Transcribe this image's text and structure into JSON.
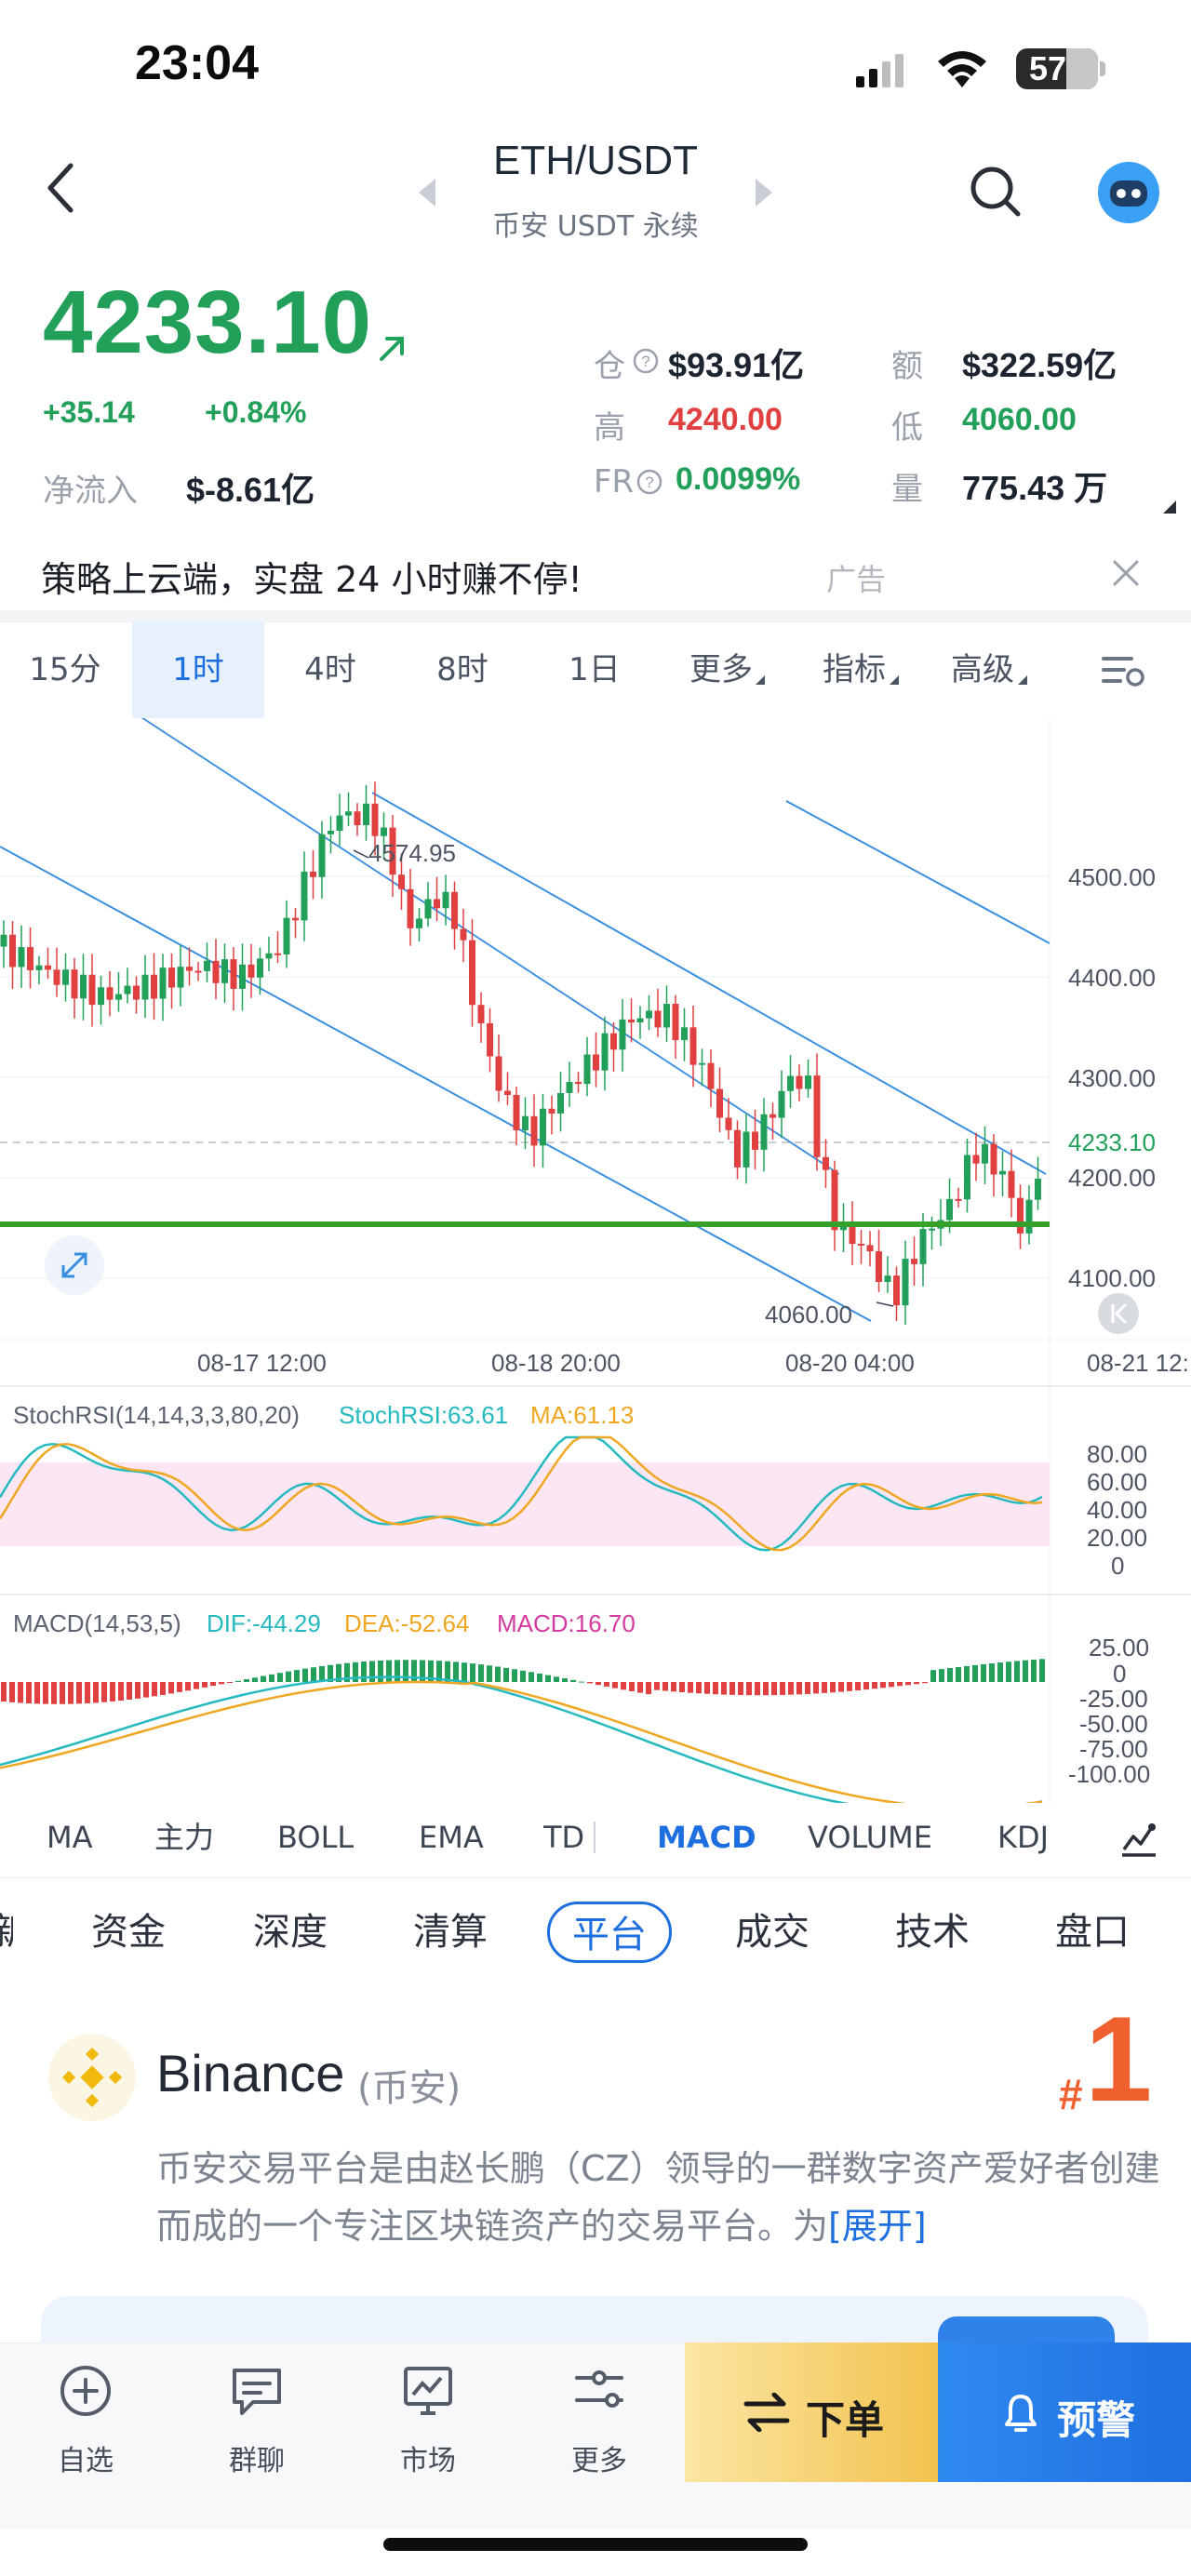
{
  "status_bar": {
    "time": "23:04",
    "battery": "57"
  },
  "header": {
    "pair": "ETH/USDT",
    "subtitle": "币安 USDT 永续"
  },
  "price": {
    "last": "4233.10",
    "change_abs": "+35.14",
    "change_pct": "+0.84%",
    "net_flow_label": "净流入",
    "net_flow_value": "$-8.61亿"
  },
  "stats": {
    "oi_label": "仓",
    "oi_value": "$93.91亿",
    "amt_label": "额",
    "amt_value": "$322.59亿",
    "high_label": "高",
    "high_value": "4240.00",
    "low_label": "低",
    "low_value": "4060.00",
    "fr_label": "FR",
    "fr_value": "0.0099%",
    "vol_label": "量",
    "vol_value": "775.43 万"
  },
  "ad": {
    "text": "策略上云端，实盘 24 小时赚不停!",
    "tag": "广告"
  },
  "timeframes": [
    "15分",
    "1时",
    "4时",
    "8时",
    "1日",
    "更多",
    "指标",
    "高级"
  ],
  "active_timeframe": "1时",
  "chart": {
    "price_ticks": [
      "4500.00",
      "4400.00",
      "4300.00",
      "4233.10",
      "4200.00",
      "4100.00"
    ],
    "high_marker": "4574.95",
    "low_marker": "4060.00",
    "time_ticks": [
      "08-17 12:00",
      "08-18 20:00",
      "08-20 04:00",
      "08-21 12:"
    ],
    "stoch_label": "StochRSI(14,14,3,3,80,20)",
    "stoch_val": "StochRSI:63.61",
    "stoch_ma": "MA:61.13",
    "stoch_ticks": [
      "80.00",
      "60.00",
      "40.00",
      "20.00",
      "0"
    ],
    "macd_label": "MACD(14,53,5)",
    "macd_dif": "DIF:-44.29",
    "macd_dea": "DEA:-52.64",
    "macd_val": "MACD:16.70",
    "macd_ticks": [
      "25.00",
      "0",
      "-25.00",
      "-50.00",
      "-75.00",
      "-100.00"
    ],
    "colors": {
      "up": "#22a05a",
      "down": "#e04040",
      "channel": "#3a8fe0",
      "support": "#36a02b"
    }
  },
  "indicators": [
    "MA",
    "主力",
    "BOLL",
    "EMA",
    "TD",
    "MACD",
    "VOLUME",
    "KDJ"
  ],
  "active_indicator": "MACD",
  "info_tabs": [
    "新",
    "资金",
    "深度",
    "清算",
    "平台",
    "成交",
    "技术",
    "盘口"
  ],
  "active_info_tab": "平台",
  "exchange": {
    "name": "Binance",
    "name_cn": "(币安)",
    "rank_hash": "#",
    "rank": "1",
    "desc": "币安交易平台是由赵长鹏（CZ）领导的一群数字资产爱好者创建而成的一个专注区块链资产的交易平台。为",
    "more": "[展开]"
  },
  "bottom_nav": {
    "items": [
      "自选",
      "群聊",
      "市场",
      "更多"
    ],
    "order": "下单",
    "alert": "预警"
  }
}
